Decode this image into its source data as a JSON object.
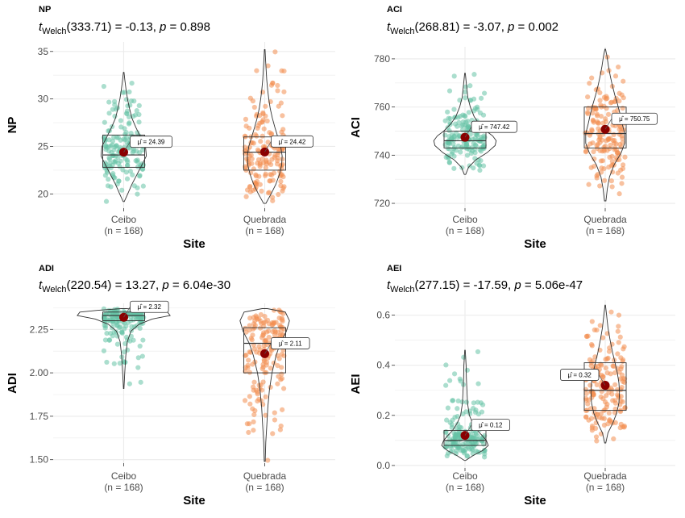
{
  "colors": {
    "ceibo": "#66c2a5",
    "quebrada": "#f28e50",
    "mean_dot": "#8b0000",
    "grid": "#ebebeb",
    "axis_text": "#4d4d4d",
    "outline": "#333333"
  },
  "chart_data": [
    {
      "type": "violin-box",
      "panel_tag": "NP",
      "subtitle": {
        "prefix": "t",
        "sub": "Welch",
        "text": "(333.71) = -0.13, ",
        "p_label": "p",
        "p_text": " = 0.898"
      },
      "xlabel": "Site",
      "ylabel": "NP",
      "ylim": [
        18.5,
        36
      ],
      "yticks": [
        20,
        25,
        30,
        35
      ],
      "ytick_labels": [
        "20",
        "25",
        "30",
        "35"
      ],
      "categories": [
        "Ceibo",
        "Quebrada"
      ],
      "n_labels": [
        "(n = 168)",
        "(n = 168)"
      ],
      "groups": [
        {
          "name": "Ceibo",
          "min": 19.2,
          "max": 32.8,
          "q1": 22.8,
          "median": 24.1,
          "q3": 26.2,
          "mean": 24.39,
          "mean_label": "μ̂ = 24.39",
          "violin": [
            [
              19.2,
              0.02
            ],
            [
              20,
              0.14
            ],
            [
              21,
              0.28
            ],
            [
              22,
              0.45
            ],
            [
              23,
              0.62
            ],
            [
              24,
              0.78
            ],
            [
              25,
              0.75
            ],
            [
              26,
              0.58
            ],
            [
              27,
              0.42
            ],
            [
              28,
              0.28
            ],
            [
              29,
              0.2
            ],
            [
              30,
              0.13
            ],
            [
              31,
              0.08
            ],
            [
              32,
              0.04
            ],
            [
              32.8,
              0.01
            ]
          ]
        },
        {
          "name": "Quebrada",
          "min": 19.0,
          "max": 35.2,
          "q1": 22.5,
          "median": 24.4,
          "q3": 26.0,
          "mean": 24.42,
          "mean_label": "μ̂ = 24.42",
          "violin": [
            [
              19,
              0.04
            ],
            [
              20,
              0.22
            ],
            [
              21,
              0.38
            ],
            [
              22,
              0.5
            ],
            [
              23,
              0.58
            ],
            [
              24,
              0.6
            ],
            [
              25,
              0.55
            ],
            [
              26,
              0.45
            ],
            [
              27,
              0.35
            ],
            [
              28,
              0.26
            ],
            [
              29,
              0.19
            ],
            [
              30,
              0.14
            ],
            [
              31,
              0.1
            ],
            [
              32,
              0.07
            ],
            [
              33,
              0.05
            ],
            [
              34,
              0.03
            ],
            [
              35.2,
              0.01
            ]
          ]
        }
      ]
    },
    {
      "type": "violin-box",
      "panel_tag": "ACI",
      "subtitle": {
        "prefix": "t",
        "sub": "Welch",
        "text": "(268.81) = -3.07, ",
        "p_label": "p",
        "p_text": " = 0.002"
      },
      "xlabel": "Site",
      "ylabel": "ACI",
      "ylim": [
        718,
        785
      ],
      "yticks": [
        720,
        740,
        760,
        780
      ],
      "ytick_labels": [
        "720",
        "740",
        "760",
        "780"
      ],
      "categories": [
        "Ceibo",
        "Quebrada"
      ],
      "n_labels": [
        "(n = 168)",
        "(n = 168)"
      ],
      "groups": [
        {
          "name": "Ceibo",
          "min": 732,
          "max": 774,
          "q1": 743,
          "median": 746,
          "q3": 750,
          "mean": 747.42,
          "mean_label": "μ̂ = 747.42",
          "violin": [
            [
              732,
              0.02
            ],
            [
              735,
              0.1
            ],
            [
              738,
              0.3
            ],
            [
              741,
              0.62
            ],
            [
              744,
              0.85
            ],
            [
              746,
              0.88
            ],
            [
              748,
              0.78
            ],
            [
              750,
              0.6
            ],
            [
              753,
              0.4
            ],
            [
              756,
              0.26
            ],
            [
              760,
              0.15
            ],
            [
              764,
              0.08
            ],
            [
              768,
              0.05
            ],
            [
              771,
              0.03
            ],
            [
              774,
              0.01
            ]
          ]
        },
        {
          "name": "Quebrada",
          "min": 721,
          "max": 784,
          "q1": 743,
          "median": 749,
          "q3": 760,
          "mean": 750.75,
          "mean_label": "μ̂ = 750.75",
          "violin": [
            [
              721,
              0.02
            ],
            [
              726,
              0.06
            ],
            [
              731,
              0.12
            ],
            [
              736,
              0.25
            ],
            [
              741,
              0.45
            ],
            [
              745,
              0.55
            ],
            [
              749,
              0.55
            ],
            [
              753,
              0.48
            ],
            [
              757,
              0.42
            ],
            [
              761,
              0.35
            ],
            [
              765,
              0.27
            ],
            [
              769,
              0.2
            ],
            [
              773,
              0.14
            ],
            [
              777,
              0.09
            ],
            [
              781,
              0.05
            ],
            [
              784,
              0.01
            ]
          ]
        }
      ]
    },
    {
      "type": "violin-box",
      "panel_tag": "ADI",
      "subtitle": {
        "prefix": "t",
        "sub": "Welch",
        "text": "(220.54) = 13.27, ",
        "p_label": "p",
        "p_text": " = 6.04e-30"
      },
      "xlabel": "Site",
      "ylabel": "ADI",
      "ylim": [
        1.48,
        2.4
      ],
      "yticks": [
        1.5,
        1.75,
        2.0,
        2.25
      ],
      "ytick_labels": [
        "1.50",
        "1.75",
        "2.00",
        "2.25"
      ],
      "categories": [
        "Ceibo",
        "Quebrada"
      ],
      "n_labels": [
        "(n = 168)",
        "(n = 168)"
      ],
      "groups": [
        {
          "name": "Ceibo",
          "min": 1.91,
          "max": 2.37,
          "q1": 2.3,
          "median": 2.33,
          "q3": 2.35,
          "mean": 2.32,
          "mean_label": "μ̂ = 2.32",
          "violin": [
            [
              1.91,
              0.005
            ],
            [
              2.0,
              0.02
            ],
            [
              2.1,
              0.04
            ],
            [
              2.18,
              0.07
            ],
            [
              2.24,
              0.14
            ],
            [
              2.28,
              0.3
            ],
            [
              2.31,
              0.55
            ],
            [
              2.33,
              0.9
            ],
            [
              2.35,
              0.85
            ],
            [
              2.36,
              0.5
            ],
            [
              2.37,
              0.05
            ]
          ]
        },
        {
          "name": "Quebrada",
          "min": 1.49,
          "max": 2.37,
          "q1": 2.0,
          "median": 2.17,
          "q3": 2.26,
          "mean": 2.11,
          "mean_label": "μ̂ = 2.11",
          "violin": [
            [
              1.49,
              0.01
            ],
            [
              1.6,
              0.02
            ],
            [
              1.7,
              0.04
            ],
            [
              1.8,
              0.06
            ],
            [
              1.9,
              0.09
            ],
            [
              2.0,
              0.14
            ],
            [
              2.1,
              0.22
            ],
            [
              2.17,
              0.3
            ],
            [
              2.24,
              0.42
            ],
            [
              2.3,
              0.48
            ],
            [
              2.35,
              0.4
            ],
            [
              2.37,
              0.05
            ]
          ]
        }
      ]
    },
    {
      "type": "violin-box",
      "panel_tag": "AEI",
      "subtitle": {
        "prefix": "t",
        "sub": "Welch",
        "text": "(277.15) = -17.59, ",
        "p_label": "p",
        "p_text": " = 5.06e-47"
      },
      "xlabel": "Site",
      "ylabel": "AEI",
      "ylim": [
        -0.01,
        0.66
      ],
      "yticks": [
        0.0,
        0.2,
        0.4,
        0.6
      ],
      "ytick_labels": [
        "0.0",
        "0.2",
        "0.4",
        "0.6"
      ],
      "categories": [
        "Ceibo",
        "Quebrada"
      ],
      "n_labels": [
        "(n = 168)",
        "(n = 168)"
      ],
      "groups": [
        {
          "name": "Ceibo",
          "min": 0.02,
          "max": 0.46,
          "q1": 0.08,
          "median": 0.1,
          "q3": 0.14,
          "mean": 0.12,
          "mean_label": "μ̂ = 0.12",
          "violin": [
            [
              0.02,
              0.02
            ],
            [
              0.04,
              0.3
            ],
            [
              0.06,
              0.65
            ],
            [
              0.08,
              0.85
            ],
            [
              0.1,
              0.78
            ],
            [
              0.12,
              0.62
            ],
            [
              0.14,
              0.45
            ],
            [
              0.17,
              0.28
            ],
            [
              0.2,
              0.16
            ],
            [
              0.25,
              0.09
            ],
            [
              0.3,
              0.07
            ],
            [
              0.35,
              0.05
            ],
            [
              0.4,
              0.04
            ],
            [
              0.46,
              0.01
            ]
          ]
        },
        {
          "name": "Quebrada",
          "min": 0.09,
          "max": 0.64,
          "q1": 0.22,
          "median": 0.3,
          "q3": 0.41,
          "mean": 0.32,
          "mean_label": "μ̂ = 0.32",
          "violin": [
            [
              0.09,
              0.02
            ],
            [
              0.13,
              0.1
            ],
            [
              0.17,
              0.28
            ],
            [
              0.21,
              0.42
            ],
            [
              0.25,
              0.5
            ],
            [
              0.29,
              0.52
            ],
            [
              0.33,
              0.5
            ],
            [
              0.37,
              0.44
            ],
            [
              0.41,
              0.36
            ],
            [
              0.45,
              0.27
            ],
            [
              0.5,
              0.18
            ],
            [
              0.55,
              0.1
            ],
            [
              0.6,
              0.05
            ],
            [
              0.64,
              0.01
            ]
          ]
        }
      ]
    }
  ]
}
